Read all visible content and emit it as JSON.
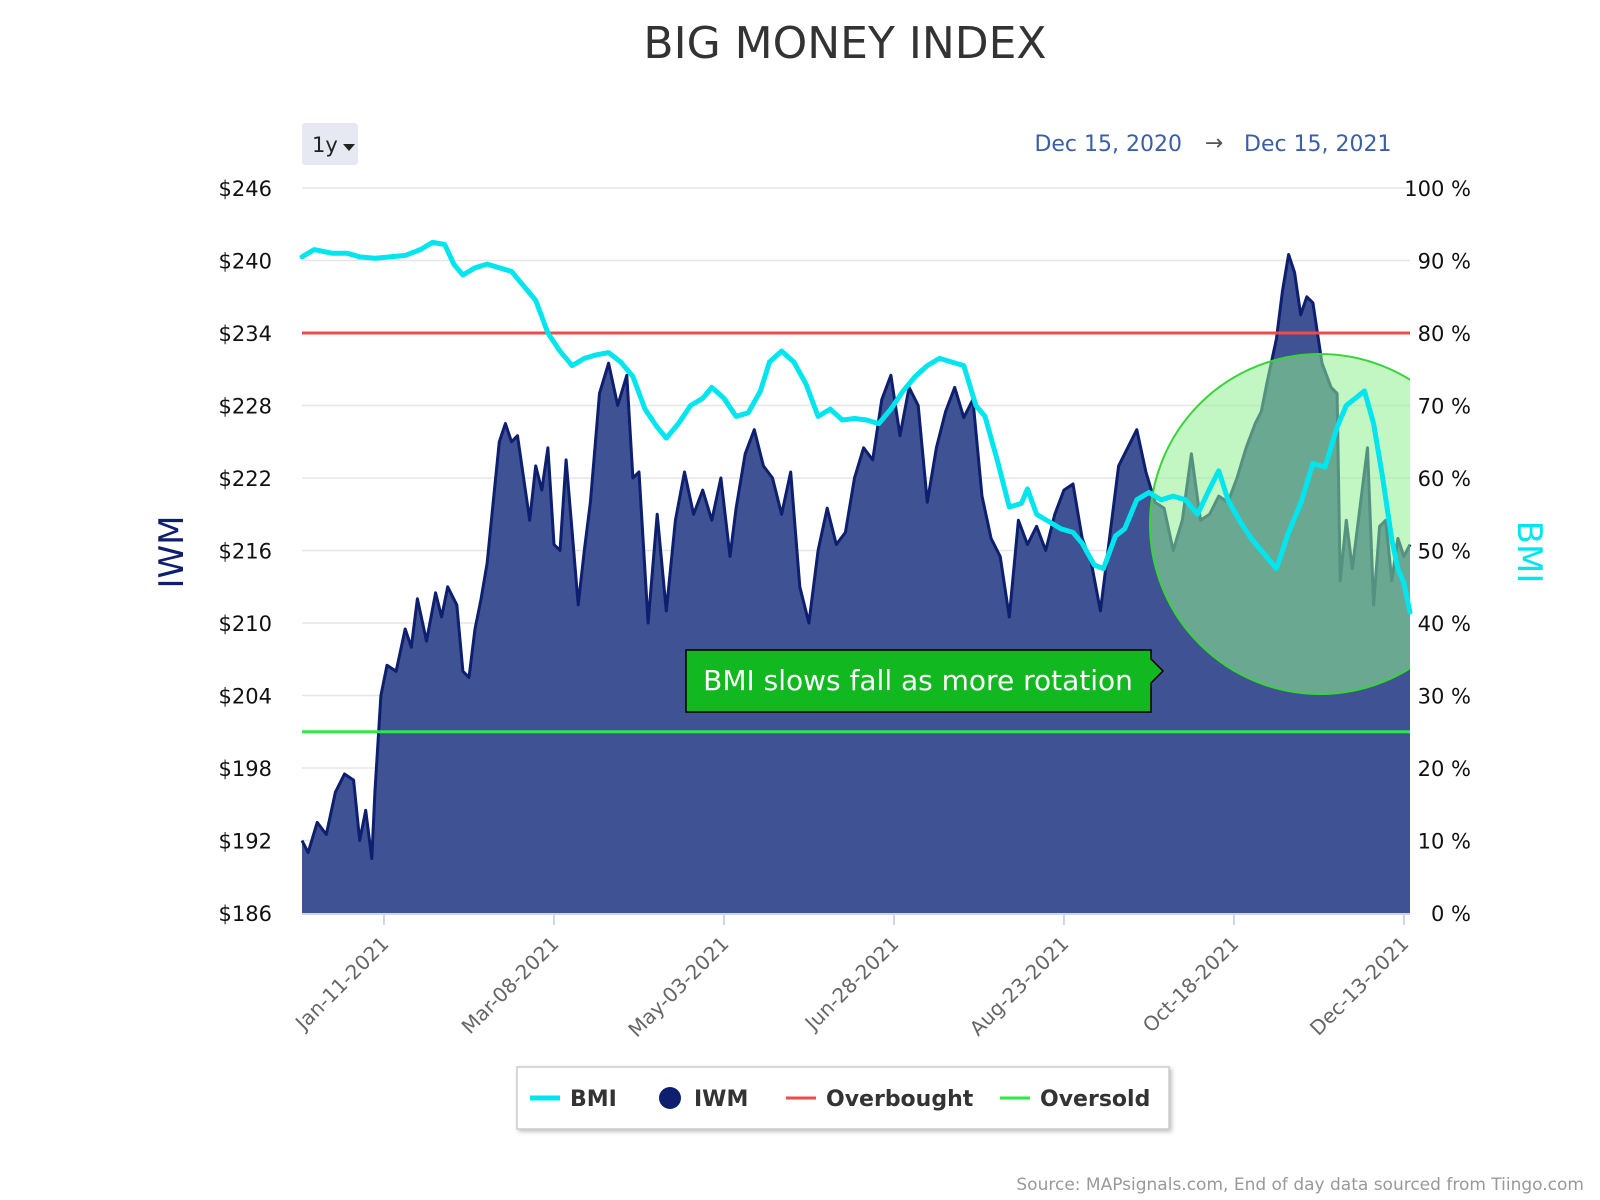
{
  "chart_data": {
    "type": "area",
    "title": "BIG MONEY INDEX",
    "range_selector": {
      "selected": "1y",
      "arrow_icon": "caret-down-icon"
    },
    "date_range": {
      "from": "Dec 15, 2020",
      "arrow": "→",
      "to": "Dec 15, 2021"
    },
    "left_axis": {
      "title": "IWM",
      "ticks": [
        "$246",
        "$240",
        "$234",
        "$228",
        "$222",
        "$216",
        "$210",
        "$204",
        "$198",
        "$192",
        "$186"
      ],
      "tick_values": [
        246,
        240,
        234,
        228,
        222,
        216,
        210,
        204,
        198,
        192,
        186
      ],
      "range": [
        186,
        246
      ]
    },
    "right_axis": {
      "title": "BMI",
      "ticks": [
        "100 %",
        "90 %",
        "80 %",
        "70 %",
        "60 %",
        "50 %",
        "40 %",
        "30 %",
        "20 %",
        "10 %",
        "0 %"
      ],
      "tick_values": [
        100,
        90,
        80,
        70,
        60,
        50,
        40,
        30,
        20,
        10,
        0
      ],
      "range": [
        0,
        100
      ]
    },
    "x_axis": {
      "start": "2020-12-15",
      "end": "2021-12-15",
      "ticks": [
        "Jan-11-2021",
        "Mar-08-2021",
        "May-03-2021",
        "Jun-28-2021",
        "Aug-23-2021",
        "Oct-18-2021",
        "Dec-13-2021"
      ],
      "tick_dates": [
        "2021-01-11",
        "2021-03-08",
        "2021-05-03",
        "2021-06-28",
        "2021-08-23",
        "2021-10-18",
        "2021-12-13"
      ]
    },
    "grid": true,
    "series": [
      {
        "name": "IWM",
        "type": "area",
        "color": "#0d1f6e",
        "fill": "#3f5294",
        "axis": "left",
        "points": [
          [
            "2020-12-15",
            192.0
          ],
          [
            "2020-12-17",
            191.0
          ],
          [
            "2020-12-20",
            193.5
          ],
          [
            "2020-12-23",
            192.5
          ],
          [
            "2020-12-26",
            196.0
          ],
          [
            "2020-12-29",
            197.5
          ],
          [
            "2021-01-01",
            197.0
          ],
          [
            "2021-01-03",
            192.0
          ],
          [
            "2021-01-05",
            194.5
          ],
          [
            "2021-01-07",
            190.5
          ],
          [
            "2021-01-08",
            196.0
          ],
          [
            "2021-01-10",
            204.0
          ],
          [
            "2021-01-12",
            206.5
          ],
          [
            "2021-01-15",
            206.0
          ],
          [
            "2021-01-18",
            209.5
          ],
          [
            "2021-01-20",
            208.0
          ],
          [
            "2021-01-22",
            212.0
          ],
          [
            "2021-01-25",
            208.5
          ],
          [
            "2021-01-28",
            212.5
          ],
          [
            "2021-01-30",
            210.5
          ],
          [
            "2021-02-01",
            213.0
          ],
          [
            "2021-02-04",
            211.5
          ],
          [
            "2021-02-06",
            206.0
          ],
          [
            "2021-02-08",
            205.5
          ],
          [
            "2021-02-10",
            209.5
          ],
          [
            "2021-02-12",
            212.0
          ],
          [
            "2021-02-14",
            215.0
          ],
          [
            "2021-02-16",
            220.0
          ],
          [
            "2021-02-18",
            225.0
          ],
          [
            "2021-02-20",
            226.5
          ],
          [
            "2021-02-22",
            225.0
          ],
          [
            "2021-02-24",
            225.5
          ],
          [
            "2021-02-26",
            222.0
          ],
          [
            "2021-02-28",
            218.5
          ],
          [
            "2021-03-02",
            223.0
          ],
          [
            "2021-03-04",
            221.0
          ],
          [
            "2021-03-06",
            224.5
          ],
          [
            "2021-03-08",
            216.5
          ],
          [
            "2021-03-10",
            216.0
          ],
          [
            "2021-03-12",
            223.5
          ],
          [
            "2021-03-14",
            217.5
          ],
          [
            "2021-03-16",
            211.5
          ],
          [
            "2021-03-18",
            216.0
          ],
          [
            "2021-03-20",
            220.0
          ],
          [
            "2021-03-23",
            229.0
          ],
          [
            "2021-03-26",
            231.5
          ],
          [
            "2021-03-29",
            228.0
          ],
          [
            "2021-04-01",
            230.5
          ],
          [
            "2021-04-03",
            222.0
          ],
          [
            "2021-04-05",
            222.5
          ],
          [
            "2021-04-08",
            210.0
          ],
          [
            "2021-04-11",
            219.0
          ],
          [
            "2021-04-14",
            211.0
          ],
          [
            "2021-04-17",
            218.5
          ],
          [
            "2021-04-20",
            222.5
          ],
          [
            "2021-04-23",
            219.0
          ],
          [
            "2021-04-26",
            221.0
          ],
          [
            "2021-04-29",
            218.5
          ],
          [
            "2021-05-02",
            222.0
          ],
          [
            "2021-05-05",
            215.5
          ],
          [
            "2021-05-07",
            219.5
          ],
          [
            "2021-05-10",
            224.0
          ],
          [
            "2021-05-13",
            226.0
          ],
          [
            "2021-05-16",
            223.0
          ],
          [
            "2021-05-19",
            222.0
          ],
          [
            "2021-05-22",
            219.0
          ],
          [
            "2021-05-25",
            222.5
          ],
          [
            "2021-05-28",
            213.0
          ],
          [
            "2021-05-31",
            210.0
          ],
          [
            "2021-06-03",
            216.0
          ],
          [
            "2021-06-06",
            219.5
          ],
          [
            "2021-06-09",
            216.5
          ],
          [
            "2021-06-12",
            217.5
          ],
          [
            "2021-06-15",
            222.0
          ],
          [
            "2021-06-18",
            224.5
          ],
          [
            "2021-06-21",
            223.5
          ],
          [
            "2021-06-24",
            228.5
          ],
          [
            "2021-06-27",
            230.5
          ],
          [
            "2021-06-30",
            225.5
          ],
          [
            "2021-07-03",
            229.5
          ],
          [
            "2021-07-06",
            228.0
          ],
          [
            "2021-07-09",
            220.0
          ],
          [
            "2021-07-12",
            224.5
          ],
          [
            "2021-07-15",
            227.5
          ],
          [
            "2021-07-18",
            229.5
          ],
          [
            "2021-07-21",
            227.0
          ],
          [
            "2021-07-24",
            228.5
          ],
          [
            "2021-07-27",
            220.5
          ],
          [
            "2021-07-30",
            217.0
          ],
          [
            "2021-08-02",
            215.5
          ],
          [
            "2021-08-05",
            210.5
          ],
          [
            "2021-08-08",
            218.5
          ],
          [
            "2021-08-11",
            216.5
          ],
          [
            "2021-08-14",
            218.0
          ],
          [
            "2021-08-17",
            216.0
          ],
          [
            "2021-08-20",
            219.0
          ],
          [
            "2021-08-23",
            221.0
          ],
          [
            "2021-08-26",
            221.5
          ],
          [
            "2021-08-29",
            217.0
          ],
          [
            "2021-09-01",
            215.0
          ],
          [
            "2021-09-04",
            211.0
          ],
          [
            "2021-09-07",
            217.0
          ],
          [
            "2021-09-10",
            223.0
          ],
          [
            "2021-09-13",
            224.5
          ],
          [
            "2021-09-16",
            226.0
          ],
          [
            "2021-09-19",
            222.5
          ],
          [
            "2021-09-22",
            220.0
          ],
          [
            "2021-09-25",
            219.5
          ],
          [
            "2021-09-28",
            216.0
          ],
          [
            "2021-10-01",
            218.5
          ],
          [
            "2021-10-04",
            224.0
          ],
          [
            "2021-10-07",
            218.5
          ],
          [
            "2021-10-10",
            219.0
          ],
          [
            "2021-10-13",
            220.5
          ],
          [
            "2021-10-16",
            220.0
          ],
          [
            "2021-10-19",
            222.0
          ],
          [
            "2021-10-22",
            224.5
          ],
          [
            "2021-10-25",
            226.5
          ],
          [
            "2021-10-27",
            227.5
          ],
          [
            "2021-10-29",
            230.0
          ],
          [
            "2021-11-01",
            233.5
          ],
          [
            "2021-11-03",
            237.5
          ],
          [
            "2021-11-05",
            240.5
          ],
          [
            "2021-11-07",
            239.0
          ],
          [
            "2021-11-09",
            235.5
          ],
          [
            "2021-11-11",
            237.0
          ],
          [
            "2021-11-13",
            236.5
          ],
          [
            "2021-11-16",
            231.5
          ],
          [
            "2021-11-19",
            229.5
          ],
          [
            "2021-11-21",
            229.0
          ],
          [
            "2021-11-22",
            213.5
          ],
          [
            "2021-11-24",
            218.5
          ],
          [
            "2021-11-26",
            214.5
          ],
          [
            "2021-11-29",
            220.5
          ],
          [
            "2021-12-01",
            224.5
          ],
          [
            "2021-12-03",
            211.5
          ],
          [
            "2021-12-05",
            218.0
          ],
          [
            "2021-12-07",
            218.5
          ],
          [
            "2021-12-09",
            213.5
          ],
          [
            "2021-12-11",
            217.0
          ],
          [
            "2021-12-13",
            215.5
          ],
          [
            "2021-12-15",
            216.5
          ]
        ]
      },
      {
        "name": "BMI",
        "type": "line",
        "color": "#00e5ee",
        "axis": "right",
        "points": [
          [
            "2020-12-15",
            90.5
          ],
          [
            "2020-12-19",
            91.5
          ],
          [
            "2020-12-25",
            91.0
          ],
          [
            "2020-12-30",
            91.0
          ],
          [
            "2021-01-03",
            90.5
          ],
          [
            "2021-01-08",
            90.3
          ],
          [
            "2021-01-13",
            90.5
          ],
          [
            "2021-01-18",
            90.7
          ],
          [
            "2021-01-23",
            91.5
          ],
          [
            "2021-01-27",
            92.5
          ],
          [
            "2021-01-31",
            92.2
          ],
          [
            "2021-02-03",
            89.5
          ],
          [
            "2021-02-06",
            88.0
          ],
          [
            "2021-02-10",
            89.0
          ],
          [
            "2021-02-14",
            89.5
          ],
          [
            "2021-02-18",
            89.0
          ],
          [
            "2021-02-22",
            88.5
          ],
          [
            "2021-02-26",
            86.5
          ],
          [
            "2021-03-02",
            84.5
          ],
          [
            "2021-03-06",
            80.0
          ],
          [
            "2021-03-10",
            77.5
          ],
          [
            "2021-03-14",
            75.5
          ],
          [
            "2021-03-18",
            76.5
          ],
          [
            "2021-03-22",
            77.0
          ],
          [
            "2021-03-26",
            77.3
          ],
          [
            "2021-03-30",
            76.0
          ],
          [
            "2021-04-03",
            74.0
          ],
          [
            "2021-04-07",
            69.5
          ],
          [
            "2021-04-11",
            67.0
          ],
          [
            "2021-04-14",
            65.5
          ],
          [
            "2021-04-18",
            67.5
          ],
          [
            "2021-04-22",
            70.0
          ],
          [
            "2021-04-26",
            71.0
          ],
          [
            "2021-04-29",
            72.5
          ],
          [
            "2021-05-03",
            71.0
          ],
          [
            "2021-05-07",
            68.5
          ],
          [
            "2021-05-11",
            69.0
          ],
          [
            "2021-05-15",
            72.0
          ],
          [
            "2021-05-18",
            76.0
          ],
          [
            "2021-05-22",
            77.5
          ],
          [
            "2021-05-26",
            76.0
          ],
          [
            "2021-05-30",
            73.0
          ],
          [
            "2021-06-03",
            68.5
          ],
          [
            "2021-06-07",
            69.5
          ],
          [
            "2021-06-11",
            68.0
          ],
          [
            "2021-06-15",
            68.2
          ],
          [
            "2021-06-19",
            68.0
          ],
          [
            "2021-06-23",
            67.5
          ],
          [
            "2021-06-27",
            69.5
          ],
          [
            "2021-07-01",
            72.0
          ],
          [
            "2021-07-05",
            74.0
          ],
          [
            "2021-07-09",
            75.5
          ],
          [
            "2021-07-13",
            76.5
          ],
          [
            "2021-07-17",
            76.0
          ],
          [
            "2021-07-21",
            75.5
          ],
          [
            "2021-07-25",
            70.0
          ],
          [
            "2021-07-28",
            68.5
          ],
          [
            "2021-08-01",
            62.5
          ],
          [
            "2021-08-05",
            56.0
          ],
          [
            "2021-08-09",
            56.5
          ],
          [
            "2021-08-11",
            58.5
          ],
          [
            "2021-08-14",
            55.0
          ],
          [
            "2021-08-18",
            54.0
          ],
          [
            "2021-08-22",
            53.0
          ],
          [
            "2021-08-26",
            52.5
          ],
          [
            "2021-08-29",
            51.0
          ],
          [
            "2021-09-02",
            48.0
          ],
          [
            "2021-09-05",
            47.5
          ],
          [
            "2021-09-09",
            52.0
          ],
          [
            "2021-09-12",
            53.0
          ],
          [
            "2021-09-16",
            57.0
          ],
          [
            "2021-09-20",
            58.0
          ],
          [
            "2021-09-24",
            57.0
          ],
          [
            "2021-09-28",
            57.5
          ],
          [
            "2021-10-02",
            57.0
          ],
          [
            "2021-10-06",
            55.0
          ],
          [
            "2021-10-10",
            58.5
          ],
          [
            "2021-10-13",
            61.0
          ],
          [
            "2021-10-16",
            57.0
          ],
          [
            "2021-10-20",
            54.0
          ],
          [
            "2021-10-24",
            51.5
          ],
          [
            "2021-10-28",
            49.5
          ],
          [
            "2021-11-01",
            47.5
          ],
          [
            "2021-11-05",
            52.5
          ],
          [
            "2021-11-09",
            56.5
          ],
          [
            "2021-11-13",
            62.0
          ],
          [
            "2021-11-17",
            61.5
          ],
          [
            "2021-11-21",
            67.0
          ],
          [
            "2021-11-24",
            70.0
          ],
          [
            "2021-11-27",
            71.0
          ],
          [
            "2021-11-30",
            72.0
          ],
          [
            "2021-12-03",
            67.5
          ],
          [
            "2021-12-06",
            60.0
          ],
          [
            "2021-12-09",
            51.5
          ],
          [
            "2021-12-11",
            47.5
          ],
          [
            "2021-12-13",
            45.5
          ],
          [
            "2021-12-15",
            41.5
          ]
        ]
      }
    ],
    "reference_lines": [
      {
        "name": "Overbought",
        "value": 80,
        "axis": "right",
        "color": "#f04b4b"
      },
      {
        "name": "Oversold",
        "value": 25,
        "axis": "right",
        "color": "#2ee84a"
      }
    ],
    "annotation": {
      "text": "BMI slows fall as more rotation",
      "bg": "#12b81f",
      "circle_fill": "#90ee90"
    },
    "legend": {
      "position": "bottom",
      "items": [
        {
          "name": "BMI",
          "marker": "line",
          "color": "#00e5ee"
        },
        {
          "name": "IWM",
          "marker": "circle",
          "color": "#0d1f6e"
        },
        {
          "name": "Overbought",
          "marker": "line",
          "color": "#f04b4b"
        },
        {
          "name": "Oversold",
          "marker": "line",
          "color": "#2ee84a"
        }
      ]
    },
    "source": "Source: MAPsignals.com, End of day data sourced from Tiingo.com"
  }
}
